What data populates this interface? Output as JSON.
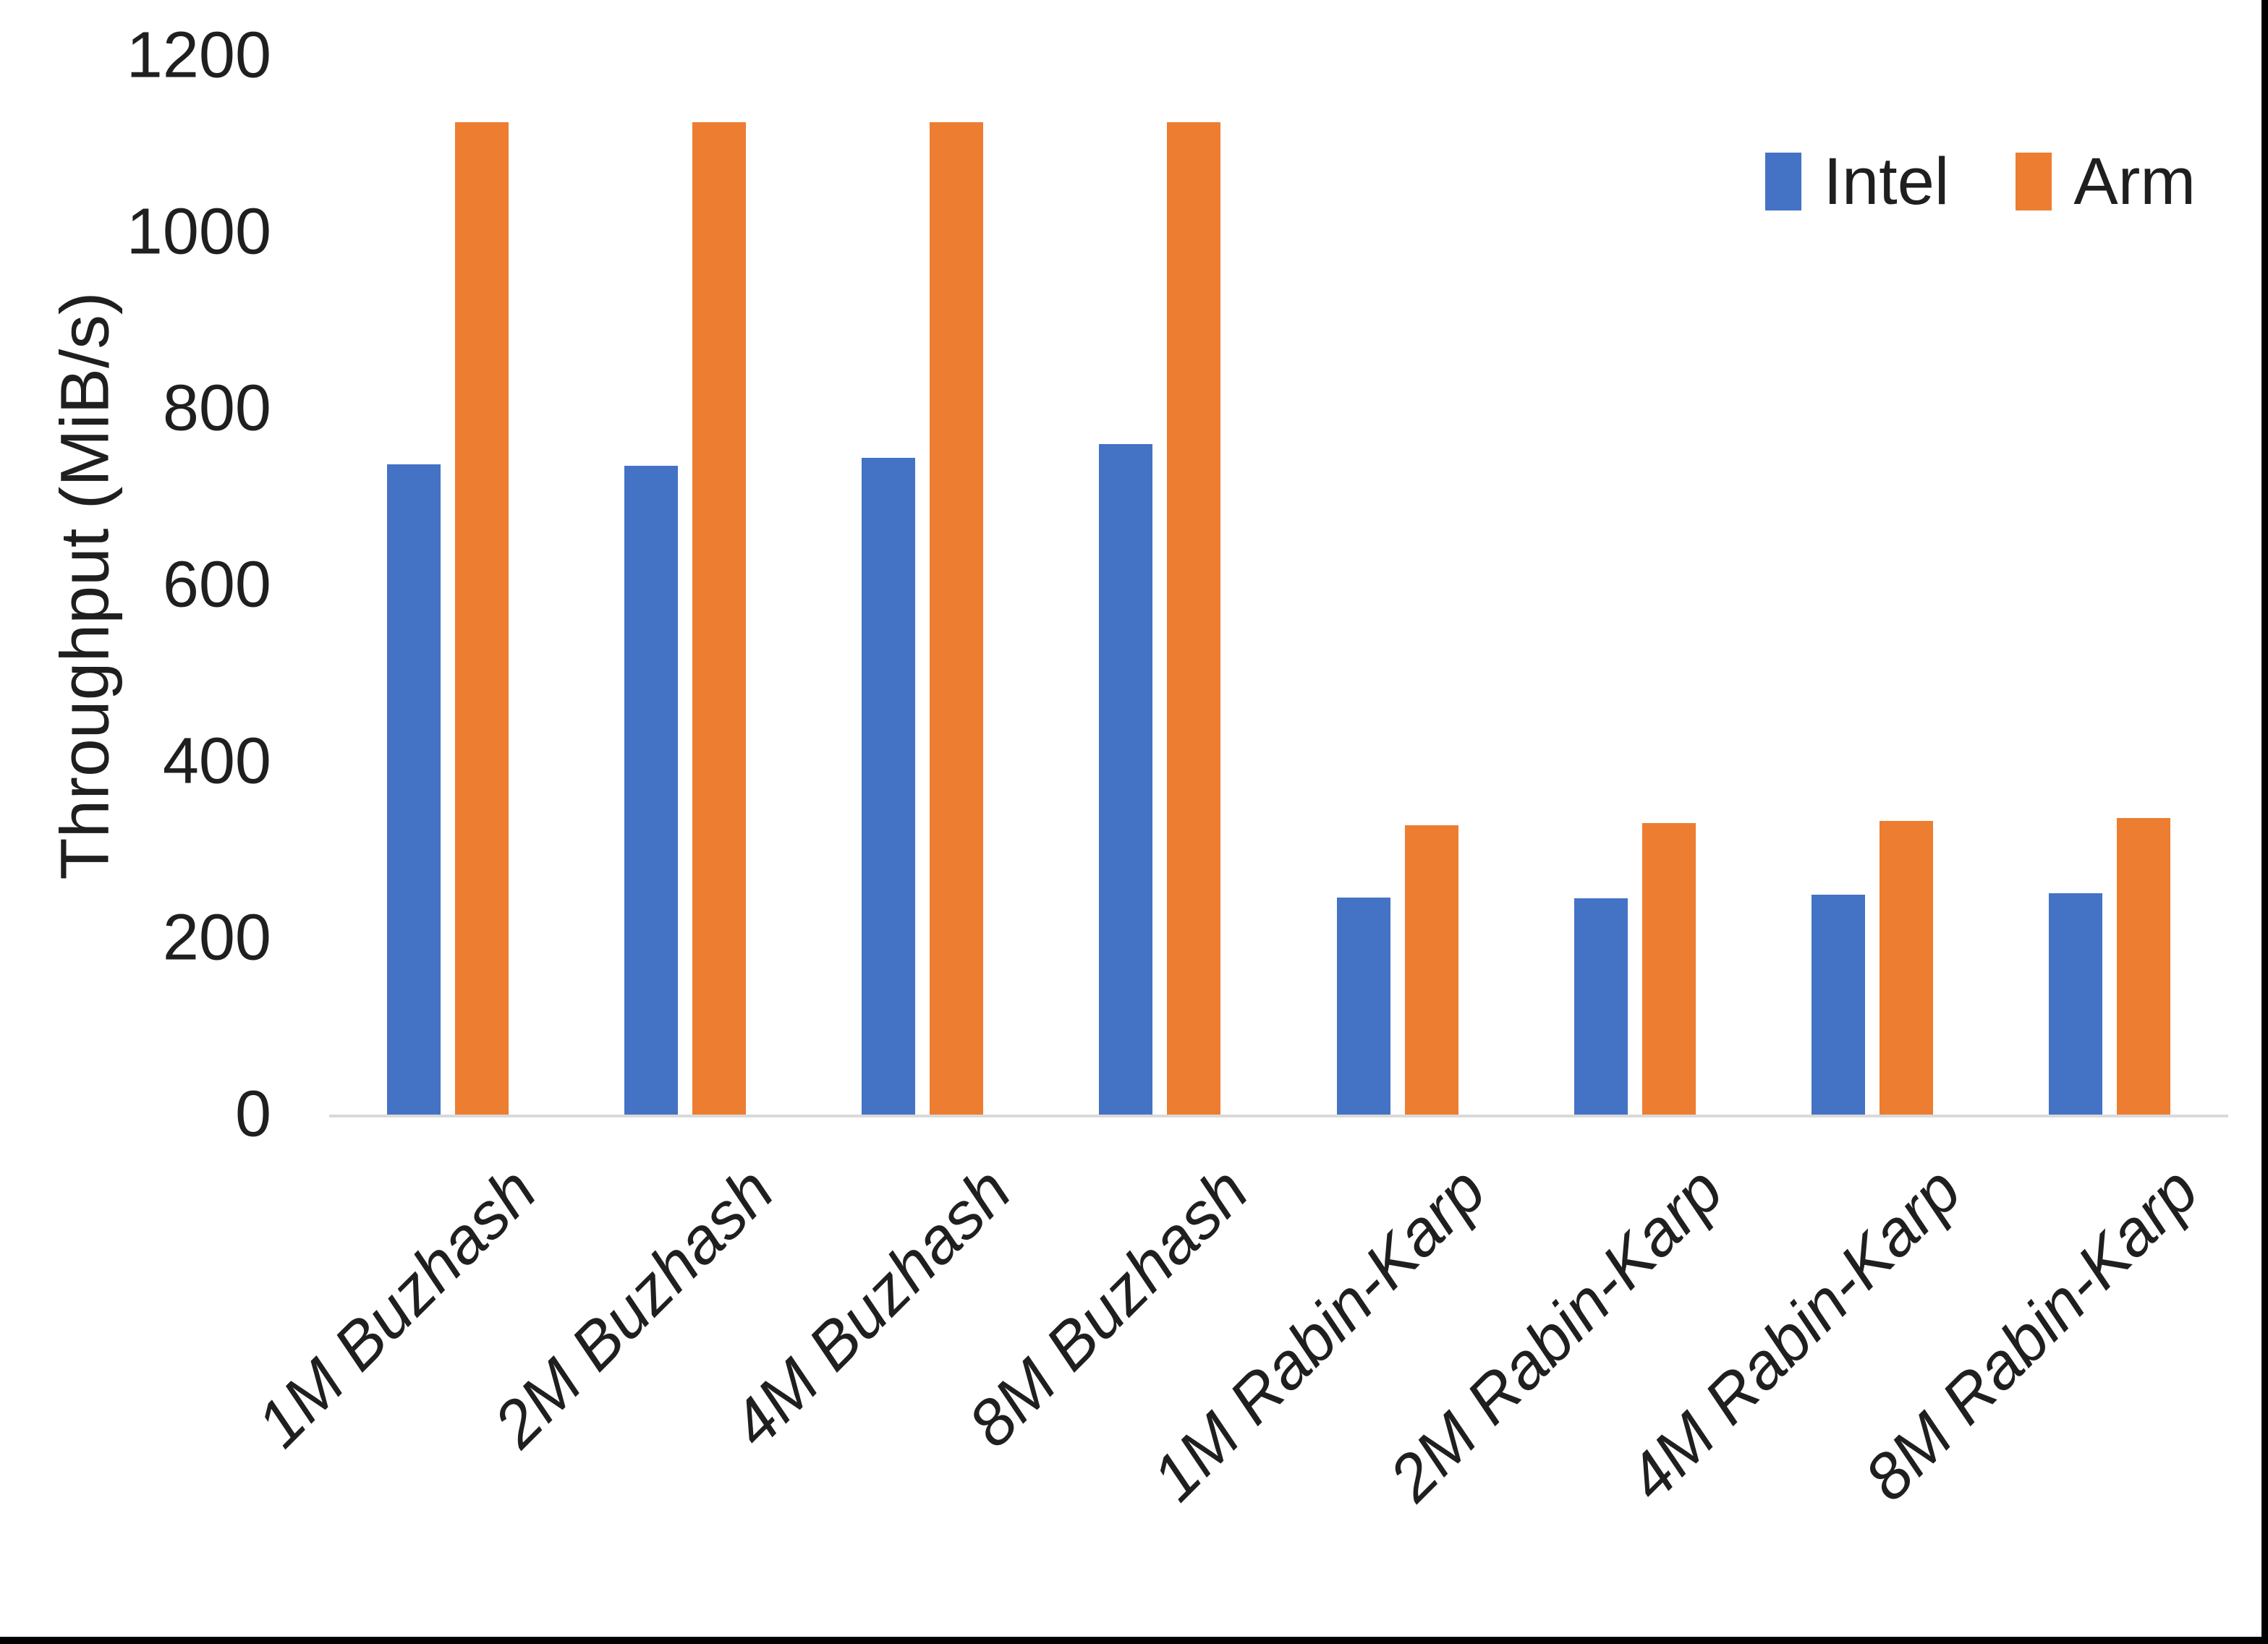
{
  "chart_data": {
    "type": "bar",
    "title": "",
    "xlabel": "",
    "ylabel": "Throughput (MiB/s)",
    "ylim": [
      0,
      1200
    ],
    "yticks": [
      0,
      200,
      400,
      600,
      800,
      1000,
      1200
    ],
    "grid": false,
    "legend_position": "top-right",
    "categories": [
      "1M Buzhash",
      "2M Buzhash",
      "4M Buzhash",
      "8M Buzhash",
      "1M Rabin-Karp",
      "2M Rabin-Karp",
      "4M Rabin-Karp",
      "8M Rabin-Karp"
    ],
    "series": [
      {
        "name": "Intel",
        "color": "#4472C4",
        "values": [
          737,
          735,
          744,
          760,
          246,
          245,
          249,
          251
        ]
      },
      {
        "name": "Arm",
        "color": "#ED7D31",
        "values": [
          1125,
          1125,
          1125,
          1125,
          328,
          330,
          333,
          336
        ]
      }
    ]
  },
  "colors": {
    "axis_line": "#d9d9d9",
    "text": "#1f1f1f",
    "screen_border": "#000000"
  }
}
